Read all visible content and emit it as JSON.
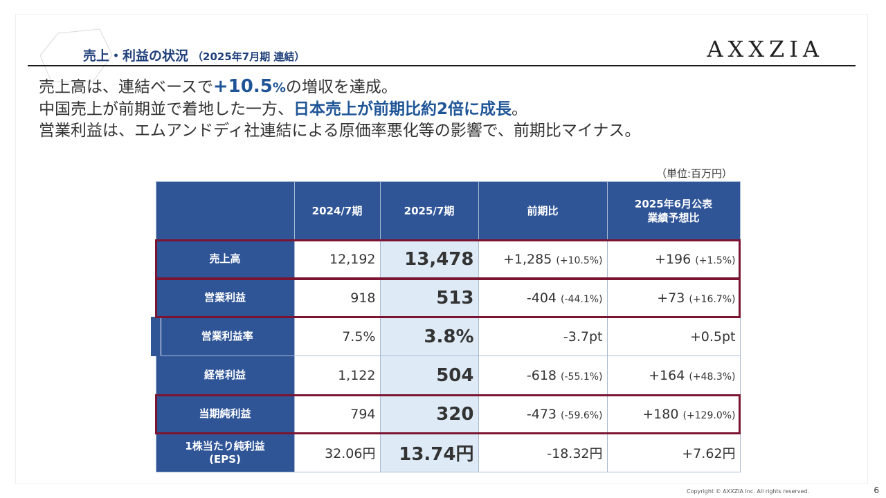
{
  "header": {
    "title": "売上・利益の状況",
    "subtitle": "（2025年7月期 連結）",
    "logo": "AXXZIA"
  },
  "lead": {
    "line1_a": "売上高は、連結ベースで",
    "line1_hl_sign": "+",
    "line1_hl_num": "10.5",
    "line1_hl_pct": "%",
    "line1_b": "の増収を達成。",
    "line2_a": "中国売上が前期並で着地した一方、",
    "line2_hl": "日本売上が前期比約2倍に成長",
    "line2_b": "。",
    "line3": "営業利益は、エムアンドディ社連結による原価率悪化等の影響で、前期比マイナス。"
  },
  "unit_note": "（単位:百万円）",
  "table": {
    "headers": [
      "",
      "2024/7期",
      "2025/7期",
      "前期比",
      "2025年6月公表",
      "業績予想比"
    ],
    "rows": [
      {
        "label": "売上高",
        "label2": "",
        "prev": "12,192",
        "cur": "13,478",
        "yoy": "+1,285",
        "yoy_pct": "(+10.5%)",
        "fc": "+196",
        "fc_pct": "(+1.5%)"
      },
      {
        "label": "営業利益",
        "label2": "",
        "prev": "918",
        "cur": "513",
        "yoy": "-404",
        "yoy_pct": "(-44.1%)",
        "fc": "+73",
        "fc_pct": "(+16.7%)"
      },
      {
        "label": "営業利益率",
        "label2": "",
        "prev": "7.5%",
        "cur": "3.8%",
        "yoy": "-3.7pt",
        "yoy_pct": "",
        "fc": "+0.5pt",
        "fc_pct": ""
      },
      {
        "label": "経常利益",
        "label2": "",
        "prev": "1,122",
        "cur": "504",
        "yoy": "-618",
        "yoy_pct": "(-55.1%)",
        "fc": "+164",
        "fc_pct": "(+48.3%)"
      },
      {
        "label": "当期純利益",
        "label2": "",
        "prev": "794",
        "cur": "320",
        "yoy": "-473",
        "yoy_pct": "(-59.6%)",
        "fc": "+180",
        "fc_pct": "(+129.0%)"
      },
      {
        "label": "1株当たり純利益",
        "label2": "(EPS)",
        "prev": "32.06円",
        "cur": "13.74円",
        "yoy": "-18.32円",
        "yoy_pct": "",
        "fc": "+7.62円",
        "fc_pct": ""
      }
    ]
  },
  "footer": {
    "copyright": "Copyright © AXXZIA Inc. All rights reserved.",
    "page": "6"
  },
  "colors": {
    "header_blue": "#2f5597",
    "highlight_blue": "#1f5597",
    "current_column_bg": "#deebf7",
    "box_outline": "#7b1431"
  }
}
